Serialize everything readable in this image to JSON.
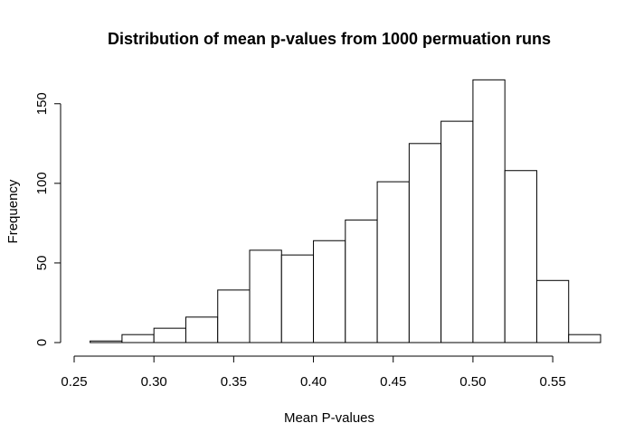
{
  "chart_data": {
    "type": "bar",
    "title": "Distribution of mean p-values from 1000 permuation runs",
    "xlabel": "Mean P-values",
    "ylabel": "Frequency",
    "bin_edges": [
      0.26,
      0.28,
      0.3,
      0.32,
      0.34,
      0.36,
      0.38,
      0.4,
      0.42,
      0.44,
      0.46,
      0.48,
      0.5,
      0.52,
      0.54,
      0.56,
      0.58
    ],
    "values": [
      1,
      5,
      9,
      16,
      33,
      58,
      55,
      64,
      77,
      101,
      125,
      139,
      165,
      108,
      39,
      5
    ],
    "xlim": [
      0.25,
      0.58
    ],
    "ylim": [
      0,
      172
    ],
    "x_ticks": [
      0.25,
      0.3,
      0.35,
      0.4,
      0.45,
      0.5,
      0.55
    ],
    "x_tick_labels": [
      "0.25",
      "0.30",
      "0.35",
      "0.40",
      "0.45",
      "0.50",
      "0.55"
    ],
    "y_ticks": [
      0,
      50,
      100,
      150
    ],
    "y_tick_labels": [
      "0",
      "50",
      "100",
      "150"
    ],
    "grid": false,
    "bar_fill": "#ffffff",
    "bar_stroke": "#000000"
  }
}
